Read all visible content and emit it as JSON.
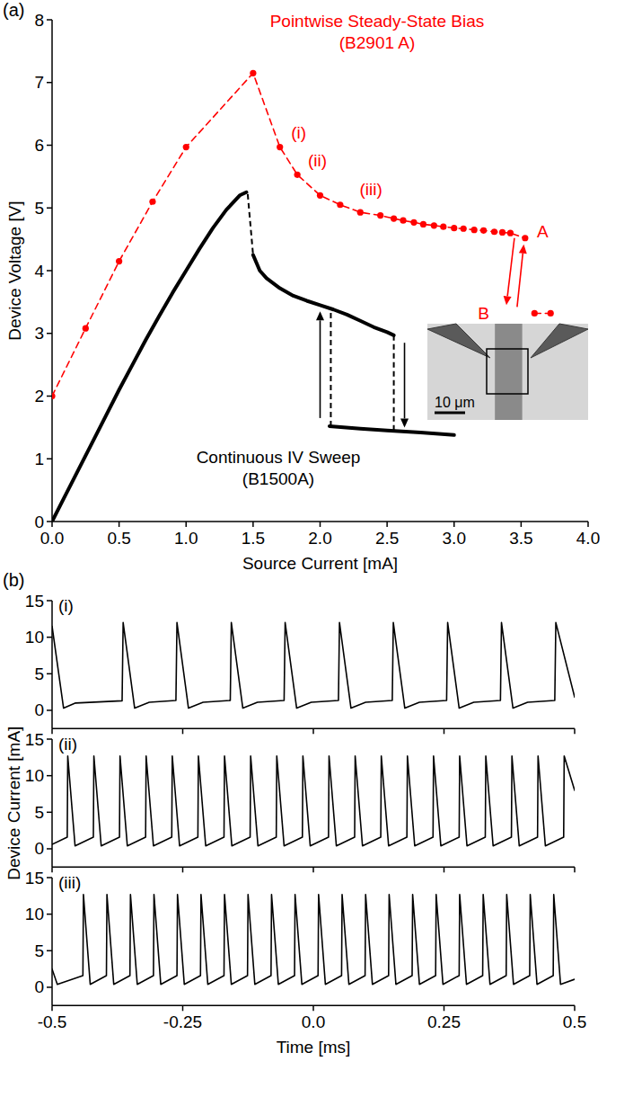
{
  "chart_data": [
    {
      "type": "line",
      "panel": "(a)",
      "xlabel": "Source Current [mA]",
      "ylabel": "Device Voltage [V]",
      "xlim": [
        0,
        4
      ],
      "ylim": [
        0,
        8
      ],
      "xticks": [
        {
          "value": 0,
          "label": "0.0"
        },
        0.5,
        {
          "value": 1,
          "label": "1.0"
        },
        1.5,
        {
          "value": 2,
          "label": "2.0"
        },
        2.5,
        {
          "value": 3,
          "label": "3.0"
        },
        3.5,
        {
          "value": 4,
          "label": "4.0"
        }
      ],
      "yticks": [
        0,
        1,
        2,
        3,
        4,
        5,
        6,
        7,
        8
      ],
      "series": [
        {
          "name": "Pointwise Steady-State Bias (B2901 A)",
          "color": "#ff0000",
          "marker": "circle",
          "line_style": "dashed",
          "x": [
            0,
            0.25,
            0.5,
            0.75,
            1.0,
            1.5,
            1.7,
            1.83,
            2.0,
            2.15,
            2.3,
            2.45,
            2.55,
            2.62,
            2.7,
            2.77,
            2.85,
            2.92,
            3.0,
            3.07,
            3.15,
            3.22,
            3.3,
            3.36,
            3.42,
            3.53,
            null,
            3.6,
            3.72
          ],
          "values": [
            2.0,
            3.08,
            4.15,
            5.1,
            5.97,
            7.15,
            5.97,
            5.53,
            5.2,
            5.05,
            4.93,
            4.88,
            4.83,
            4.8,
            4.77,
            4.74,
            4.72,
            4.7,
            4.68,
            4.67,
            4.65,
            4.64,
            4.62,
            4.61,
            4.6,
            4.52,
            null,
            3.32,
            3.32
          ]
        },
        {
          "name": "Continuous IV Sweep (B1500A)",
          "color": "#000000",
          "marker": "none",
          "line_style": "solid",
          "x": [
            0,
            0.1,
            0.2,
            0.3,
            0.4,
            0.5,
            0.6,
            0.7,
            0.8,
            0.9,
            1.0,
            1.1,
            1.2,
            1.3,
            1.4,
            1.45,
            null,
            1.5,
            1.55,
            1.6,
            1.7,
            1.8,
            1.9,
            2.0,
            2.1,
            2.2,
            2.3,
            2.4,
            2.5,
            2.55,
            null,
            2.07,
            2.3,
            2.5,
            2.75,
            3.0
          ],
          "values": [
            0,
            0.42,
            0.84,
            1.26,
            1.68,
            2.1,
            2.5,
            2.9,
            3.28,
            3.65,
            4.0,
            4.35,
            4.68,
            4.97,
            5.2,
            5.25,
            null,
            4.25,
            4.0,
            3.88,
            3.72,
            3.6,
            3.52,
            3.45,
            3.38,
            3.3,
            3.2,
            3.1,
            3.02,
            2.97,
            null,
            1.52,
            1.48,
            1.45,
            1.42,
            1.38
          ]
        }
      ],
      "annotations": [
        {
          "text": "(i)",
          "x": 1.84,
          "y": 6.2,
          "color": "#ff0000"
        },
        {
          "text": "(ii)",
          "x": 1.98,
          "y": 5.75,
          "color": "#ff0000"
        },
        {
          "text": "(iii)",
          "x": 2.38,
          "y": 5.3,
          "color": "#ff0000"
        },
        {
          "text": "A",
          "x": 3.66,
          "y": 4.62,
          "color": "#ff0000"
        },
        {
          "text": "B",
          "x": 3.22,
          "y": 3.32,
          "color": "#ff0000"
        }
      ],
      "arrows": [
        {
          "from": [
            2.0,
            1.65
          ],
          "to": [
            2.0,
            3.35
          ],
          "color": "#000000"
        },
        {
          "from": [
            2.63,
            2.85
          ],
          "to": [
            2.63,
            1.5
          ],
          "color": "#000000"
        },
        {
          "from": [
            3.45,
            4.52
          ],
          "to": [
            3.39,
            3.45
          ],
          "color": "#ff0000"
        },
        {
          "from": [
            3.47,
            3.42
          ],
          "to": [
            3.52,
            4.42
          ],
          "color": "#ff0000"
        }
      ],
      "connectors": [
        {
          "from": [
            1.46,
            5.22
          ],
          "to": [
            1.5,
            4.25
          ],
          "color": "#000000",
          "line_style": "dashed"
        },
        {
          "from": [
            2.08,
            1.52
          ],
          "to": [
            2.08,
            3.37
          ],
          "color": "#000000",
          "line_style": "dashed"
        },
        {
          "from": [
            2.55,
            2.97
          ],
          "to": [
            2.55,
            1.45
          ],
          "color": "#000000",
          "line_style": "dashed"
        }
      ],
      "inset": {
        "scale_label": "10 μm"
      }
    },
    {
      "type": "line",
      "panel": "(b)",
      "title": "(i)",
      "xlim": [
        -0.5,
        0.5
      ],
      "ylim": [
        -2.5,
        15
      ],
      "xticks": [
        -0.5,
        -0.25,
        {
          "value": 0,
          "label": "0.0"
        },
        0.25,
        0.5
      ],
      "yticks": [
        0,
        5,
        10,
        15
      ],
      "tick_labels": "y",
      "series": [
        {
          "color": "#000000",
          "line_style": "solid",
          "x": [
            -0.5,
            -0.478,
            -0.455,
            -0.366,
            -0.364,
            -0.342,
            -0.314,
            -0.263,
            -0.261,
            -0.239,
            -0.211,
            -0.159,
            -0.157,
            -0.135,
            -0.107,
            -0.056,
            -0.054,
            -0.032,
            -0.004,
            0.048,
            0.05,
            0.072,
            0.1,
            0.151,
            0.153,
            0.175,
            0.203,
            0.255,
            0.257,
            0.279,
            0.307,
            0.358,
            0.36,
            0.382,
            0.41,
            0.462,
            0.464,
            0.5
          ],
          "values": [
            11.5,
            0.3,
            1.0,
            1.3,
            12.0,
            0.3,
            1.1,
            1.35,
            12.0,
            0.3,
            1.1,
            1.35,
            12.0,
            0.3,
            1.1,
            1.35,
            12.0,
            0.3,
            1.1,
            1.35,
            12.0,
            0.3,
            1.1,
            1.35,
            12.0,
            0.3,
            1.1,
            1.35,
            12.0,
            0.3,
            1.1,
            1.35,
            12.0,
            0.3,
            1.1,
            1.35,
            12.0,
            1.8
          ]
        }
      ]
    },
    {
      "type": "line",
      "title": "(ii)",
      "ylabel": "Device Current [mA]",
      "xlim": [
        -0.5,
        0.5
      ],
      "ylim": [
        -2.5,
        15
      ],
      "xticks": [
        -0.5,
        -0.25,
        {
          "value": 0,
          "label": "0.0"
        },
        0.25,
        0.5
      ],
      "yticks": [
        0,
        5,
        10,
        15
      ],
      "tick_labels": "y",
      "series": [
        {
          "color": "#000000",
          "line_style": "solid",
          "x": [
            -0.5,
            -0.471,
            -0.47,
            -0.456,
            -0.421,
            -0.42,
            -0.406,
            -0.371,
            -0.37,
            -0.356,
            -0.321,
            -0.32,
            -0.306,
            -0.271,
            -0.27,
            -0.256,
            -0.221,
            -0.22,
            -0.206,
            -0.171,
            -0.17,
            -0.156,
            -0.121,
            -0.12,
            -0.106,
            -0.071,
            -0.07,
            -0.056,
            -0.021,
            -0.02,
            -0.006,
            0.029,
            0.03,
            0.044,
            0.079,
            0.08,
            0.094,
            0.129,
            0.13,
            0.144,
            0.179,
            0.18,
            0.194,
            0.229,
            0.23,
            0.244,
            0.279,
            0.28,
            0.294,
            0.329,
            0.33,
            0.344,
            0.379,
            0.38,
            0.394,
            0.429,
            0.43,
            0.444,
            0.479,
            0.48,
            0.5
          ],
          "values": [
            0.6,
            1.6,
            12.7,
            0.4,
            1.6,
            12.7,
            0.4,
            1.6,
            12.7,
            0.4,
            1.6,
            12.7,
            0.4,
            1.6,
            12.7,
            0.4,
            1.6,
            12.7,
            0.4,
            1.6,
            12.7,
            0.4,
            1.6,
            12.7,
            0.4,
            1.6,
            12.7,
            0.4,
            1.6,
            12.7,
            0.4,
            1.6,
            12.7,
            0.4,
            1.6,
            12.7,
            0.4,
            1.6,
            12.7,
            0.4,
            1.6,
            12.7,
            0.4,
            1.6,
            12.7,
            0.4,
            1.6,
            12.7,
            0.4,
            1.6,
            12.7,
            0.4,
            1.6,
            12.7,
            0.4,
            1.6,
            12.7,
            0.4,
            1.6,
            12.7,
            8.0
          ]
        }
      ]
    },
    {
      "type": "line",
      "title": "(iii)",
      "xlabel": "Time [ms]",
      "xlim": [
        -0.5,
        0.5
      ],
      "ylim": [
        -2.5,
        15
      ],
      "xticks": [
        -0.5,
        -0.25,
        {
          "value": 0,
          "label": "0.0"
        },
        0.25,
        0.5
      ],
      "yticks": [
        0,
        5,
        10,
        15
      ],
      "series": [
        {
          "color": "#000000",
          "line_style": "solid",
          "x": [
            -0.5,
            -0.49,
            -0.441,
            -0.44,
            -0.427,
            -0.396,
            -0.395,
            -0.382,
            -0.351,
            -0.35,
            -0.337,
            -0.306,
            -0.305,
            -0.292,
            -0.261,
            -0.26,
            -0.247,
            -0.216,
            -0.215,
            -0.202,
            -0.171,
            -0.17,
            -0.157,
            -0.126,
            -0.125,
            -0.112,
            -0.081,
            -0.08,
            -0.067,
            -0.036,
            -0.035,
            -0.022,
            0.009,
            0.01,
            0.023,
            0.054,
            0.055,
            0.068,
            0.099,
            0.1,
            0.113,
            0.144,
            0.145,
            0.158,
            0.189,
            0.19,
            0.203,
            0.234,
            0.235,
            0.248,
            0.279,
            0.28,
            0.293,
            0.324,
            0.325,
            0.338,
            0.369,
            0.37,
            0.383,
            0.414,
            0.415,
            0.428,
            0.459,
            0.46,
            0.473,
            0.5
          ],
          "values": [
            2.5,
            0.4,
            1.6,
            12.7,
            0.4,
            1.6,
            12.7,
            0.4,
            1.6,
            12.7,
            0.4,
            1.6,
            12.7,
            0.4,
            1.6,
            12.7,
            0.4,
            1.6,
            12.7,
            0.4,
            1.6,
            12.7,
            0.4,
            1.6,
            12.7,
            0.4,
            1.6,
            12.7,
            0.4,
            1.6,
            12.7,
            0.4,
            1.6,
            12.7,
            0.4,
            1.6,
            12.7,
            0.4,
            1.6,
            12.7,
            0.4,
            1.6,
            12.7,
            0.4,
            1.6,
            12.7,
            0.4,
            1.6,
            12.7,
            0.4,
            1.6,
            12.7,
            0.4,
            1.6,
            12.7,
            0.4,
            1.6,
            12.7,
            0.4,
            1.6,
            12.7,
            0.4,
            1.6,
            12.7,
            0.4,
            1.1
          ]
        }
      ]
    }
  ]
}
